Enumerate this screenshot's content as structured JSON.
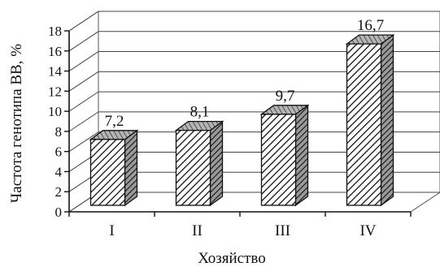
{
  "chart_data": {
    "type": "bar",
    "categories": [
      "I",
      "II",
      "III",
      "IV"
    ],
    "values": [
      7.2,
      8.1,
      9.7,
      16.7
    ],
    "value_labels": [
      "7,2",
      "8,1",
      "9,7",
      "16,7"
    ],
    "xlabel": "Хозяйство",
    "ylabel": "Частота генотипа BB, %",
    "ylim": [
      0,
      18
    ],
    "yticks": [
      "0",
      "2",
      "4",
      "6",
      "8",
      "10",
      "12",
      "14",
      "16",
      "18"
    ],
    "grid": true,
    "style": "3d-hatched"
  }
}
